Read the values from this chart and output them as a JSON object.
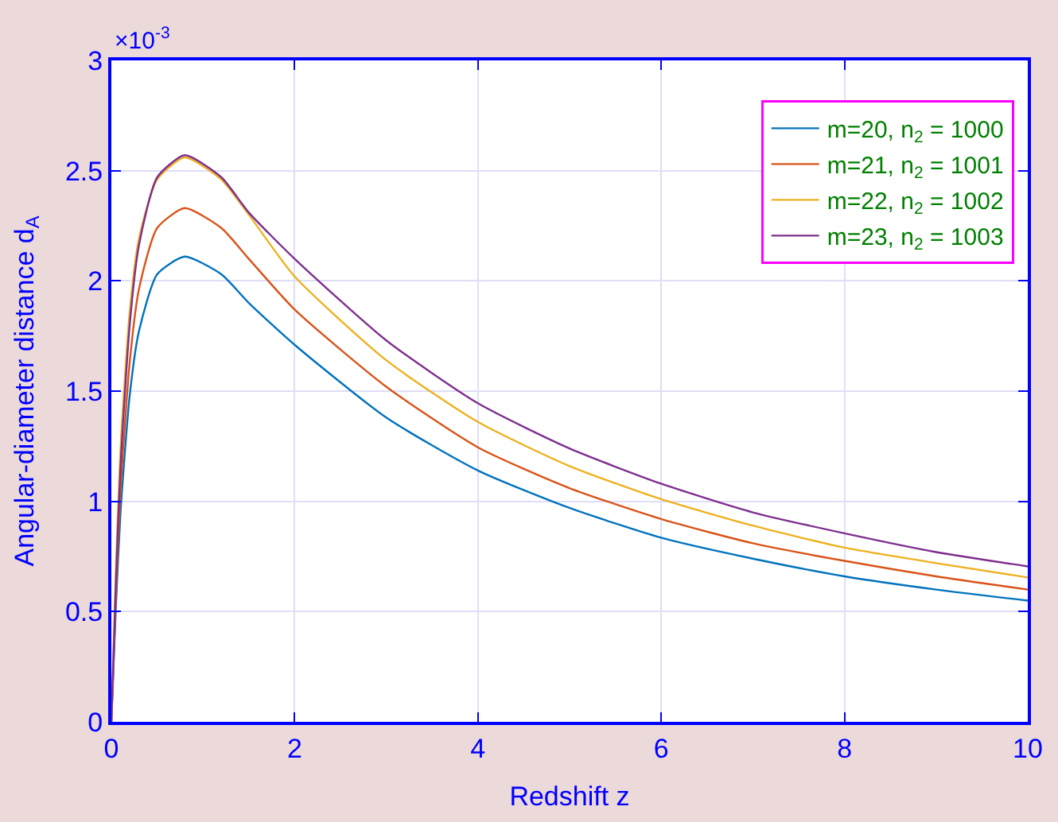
{
  "chart_data": {
    "type": "line",
    "xlabel": "Redshift z",
    "ylabel": "Angular-diameter distance d$_{A}$",
    "x": [
      0,
      0.05,
      0.1,
      0.2,
      0.3,
      0.5,
      0.8,
      1.2,
      1.5,
      2,
      3,
      4,
      5,
      6,
      7,
      8,
      9,
      10
    ],
    "series": [
      {
        "name": "m=20, n$_{2}$ = 1000",
        "color": "#0072bd",
        "values": [
          0,
          0.53,
          0.95,
          1.48,
          1.77,
          2.03,
          2.11,
          2.03,
          1.9,
          1.71,
          1.38,
          1.14,
          0.97,
          0.835,
          0.74,
          0.66,
          0.6,
          0.55
        ]
      },
      {
        "name": "m=21, n$_{2}$ = 1001",
        "color": "#d95319",
        "values": [
          0,
          0.58,
          1.05,
          1.63,
          1.96,
          2.24,
          2.33,
          2.24,
          2.1,
          1.87,
          1.52,
          1.245,
          1.06,
          0.92,
          0.81,
          0.73,
          0.66,
          0.6
        ]
      },
      {
        "name": "m=22, n$_{2}$ = 1002",
        "color": "#edb120",
        "values": [
          0,
          0.7,
          1.24,
          1.86,
          2.19,
          2.46,
          2.56,
          2.46,
          2.3,
          2.02,
          1.64,
          1.36,
          1.16,
          1.01,
          0.89,
          0.79,
          0.72,
          0.655
        ]
      },
      {
        "name": "m=23, n$_{2}$ = 1003",
        "color": "#7e2f8e",
        "values": [
          0,
          0.64,
          1.16,
          1.8,
          2.16,
          2.47,
          2.57,
          2.47,
          2.31,
          2.1,
          1.73,
          1.445,
          1.24,
          1.08,
          0.95,
          0.855,
          0.77,
          0.705
        ]
      }
    ],
    "xlim": [
      0,
      10
    ],
    "xticks": [
      0,
      2,
      4,
      6,
      8,
      10
    ],
    "ylim": [
      0,
      3
    ],
    "yticks": [
      0,
      0.5,
      1,
      1.5,
      2,
      2.5,
      3
    ],
    "annotations": [
      "×10$^{-3}$"
    ],
    "grid": true,
    "legend": "top right",
    "marker": "none",
    "line_style": "solid"
  }
}
